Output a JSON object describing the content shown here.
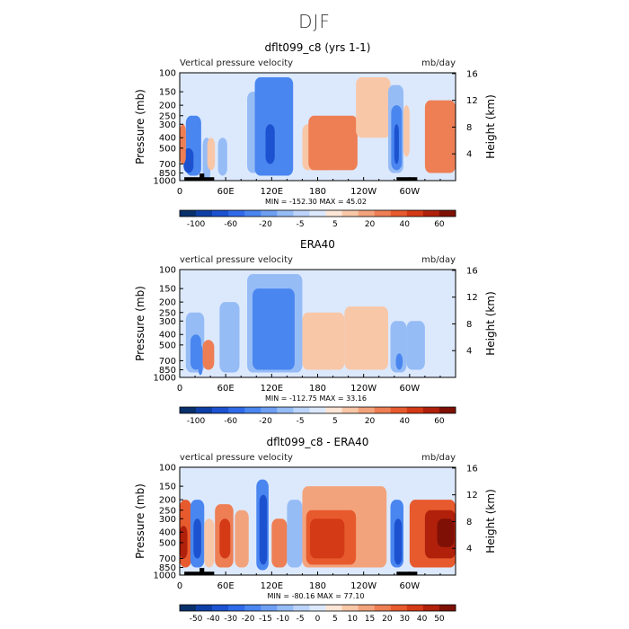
{
  "figure": {
    "title": "DJF"
  },
  "chart_data": [
    {
      "type": "heatmap",
      "title": "dflt099_c8 (yrs 1-1)",
      "left_label": "Vertical pressure velocity",
      "right_label": "mb/day",
      "ylabel": "Pressure (mb)",
      "ylabel_right": "Height (km)",
      "xticks": [
        "0",
        "60E",
        "120E",
        "180",
        "120W",
        "60W"
      ],
      "yticks": [
        "100",
        "150",
        "200",
        "250",
        "300",
        "400",
        "500",
        "700",
        "850",
        "1000"
      ],
      "yticks_right": [
        "16",
        "12",
        "8",
        "4"
      ],
      "stats": {
        "min_label": "MIN =",
        "min": "-152.30",
        "max_label": "MAX =",
        "max": "45.02"
      },
      "colorbar": {
        "ticks": [
          "-100",
          "-60",
          "-20",
          "-5",
          "5",
          "20",
          "40",
          "60"
        ],
        "colors": [
          "#08306b",
          "#0d3fa6",
          "#1c52d0",
          "#2f6ae8",
          "#4a86f0",
          "#6e9ff2",
          "#96bcf6",
          "#bcd4fa",
          "#dce9fd",
          "#fde6d6",
          "#f8c7a8",
          "#f3a37c",
          "#ee7e54",
          "#e75a2e",
          "#d43a16",
          "#b0200b",
          "#7f1005"
        ]
      },
      "data": {
        "xlim": [
          0,
          360
        ],
        "ylim": [
          1000,
          100
        ],
        "features": [
          {
            "x": [
              8,
              28
            ],
            "p": [
              900,
              250
            ],
            "v": -60
          },
          {
            "x": [
              5,
              18
            ],
            "p": [
              850,
              500
            ],
            "v": -100
          },
          {
            "x": [
              30,
              40
            ],
            "p": [
              1000,
              400
            ],
            "v": -20
          },
          {
            "x": [
              0,
              8
            ],
            "p": [
              700,
              300
            ],
            "v": 20
          },
          {
            "x": [
              36,
              46
            ],
            "p": [
              800,
              400
            ],
            "v": 5
          },
          {
            "x": [
              50,
              62
            ],
            "p": [
              900,
              400
            ],
            "v": -20
          },
          {
            "x": [
              72,
              88
            ],
            "p": [
              850,
              200
            ],
            "v": -5
          },
          {
            "x": [
              88,
              108
            ],
            "p": [
              850,
              150
            ],
            "v": -20
          },
          {
            "x": [
              98,
              148
            ],
            "p": [
              900,
              110
            ],
            "v": -40
          },
          {
            "x": [
              108,
              142
            ],
            "p": [
              700,
              200
            ],
            "v": -60
          },
          {
            "x": [
              112,
              124
            ],
            "p": [
              700,
              300
            ],
            "v": -100
          },
          {
            "x": [
              160,
              200
            ],
            "p": [
              800,
              300
            ],
            "v": 5
          },
          {
            "x": [
              168,
              232
            ],
            "p": [
              800,
              250
            ],
            "v": 20
          },
          {
            "x": [
              178,
              225
            ],
            "p": [
              750,
              400
            ],
            "v": 30
          },
          {
            "x": [
              230,
              275
            ],
            "p": [
              400,
              110
            ],
            "v": 5
          },
          {
            "x": [
              272,
              292
            ],
            "p": [
              850,
              130
            ],
            "v": -20
          },
          {
            "x": [
              276,
              290
            ],
            "p": [
              800,
              200
            ],
            "v": -60
          },
          {
            "x": [
              280,
              286
            ],
            "p": [
              700,
              300
            ],
            "v": -100
          },
          {
            "x": [
              292,
              300
            ],
            "p": [
              600,
              200
            ],
            "v": 5
          },
          {
            "x": [
              320,
              360
            ],
            "p": [
              850,
              180
            ],
            "v": 20
          },
          {
            "x": [
              335,
              360
            ],
            "p": [
              600,
              250
            ],
            "v": 30
          }
        ],
        "masks": [
          {
            "x": [
              6,
              45
            ],
            "p": [
              1000,
              930
            ]
          },
          {
            "x": [
              26,
              32
            ],
            "p": [
              1000,
              860
            ]
          },
          {
            "x": [
              283,
              310
            ],
            "p": [
              1000,
              930
            ]
          }
        ]
      }
    },
    {
      "type": "heatmap",
      "title": "ERA40",
      "left_label": "vertical pressure velocity",
      "right_label": "mb/day",
      "ylabel": "Pressure (mb)",
      "ylabel_right": "Height (km)",
      "xticks": [
        "0",
        "60E",
        "120E",
        "180",
        "120W",
        "60W"
      ],
      "yticks": [
        "100",
        "150",
        "200",
        "250",
        "300",
        "400",
        "500",
        "700",
        "850",
        "1000"
      ],
      "yticks_right": [
        "16",
        "12",
        "8",
        "4"
      ],
      "stats": {
        "min_label": "MIN =",
        "min": "-112.75",
        "max_label": "MAX =",
        "max": "33.16"
      },
      "colorbar": {
        "ticks": [
          "-100",
          "-60",
          "-20",
          "-5",
          "5",
          "20",
          "40",
          "60"
        ],
        "colors": [
          "#08306b",
          "#0d3fa6",
          "#1c52d0",
          "#2f6ae8",
          "#4a86f0",
          "#6e9ff2",
          "#96bcf6",
          "#bcd4fa",
          "#dce9fd",
          "#fde6d6",
          "#f8c7a8",
          "#f3a37c",
          "#ee7e54",
          "#e75a2e",
          "#d43a16",
          "#b0200b",
          "#7f1005"
        ]
      },
      "data": {
        "xlim": [
          0,
          360
        ],
        "ylim": [
          1000,
          100
        ],
        "features": [
          {
            "x": [
              2,
              70
            ],
            "p": [
              950,
              150
            ],
            "v": -5
          },
          {
            "x": [
              8,
              32
            ],
            "p": [
              900,
              250
            ],
            "v": -20
          },
          {
            "x": [
              14,
              28
            ],
            "p": [
              850,
              400
            ],
            "v": -40
          },
          {
            "x": [
              24,
              30
            ],
            "p": [
              950,
              500
            ],
            "v": -60
          },
          {
            "x": [
              30,
              45
            ],
            "p": [
              850,
              450
            ],
            "v": 20
          },
          {
            "x": [
              34,
              42
            ],
            "p": [
              800,
              450
            ],
            "v": 30
          },
          {
            "x": [
              52,
              78
            ],
            "p": [
              900,
              200
            ],
            "v": -20
          },
          {
            "x": [
              88,
              160
            ],
            "p": [
              900,
              110
            ],
            "v": -20
          },
          {
            "x": [
              95,
              150
            ],
            "p": [
              850,
              150
            ],
            "v": -40
          },
          {
            "x": [
              110,
              130
            ],
            "p": [
              700,
              250
            ],
            "v": -60
          },
          {
            "x": [
              160,
              215
            ],
            "p": [
              850,
              250
            ],
            "v": 5
          },
          {
            "x": [
              215,
              272
            ],
            "p": [
              850,
              220
            ],
            "v": 5
          },
          {
            "x": [
              275,
              296
            ],
            "p": [
              900,
              300
            ],
            "v": -20
          },
          {
            "x": [
              282,
              291
            ],
            "p": [
              850,
              600
            ],
            "v": -60
          },
          {
            "x": [
              296,
              320
            ],
            "p": [
              850,
              300
            ],
            "v": -20
          },
          {
            "x": [
              324,
              350
            ],
            "p": [
              850,
              400
            ],
            "v": -5
          }
        ],
        "masks": []
      }
    },
    {
      "type": "heatmap",
      "title": "dflt099_c8 - ERA40",
      "left_label": "vertical pressure velocity",
      "right_label": "mb/day",
      "ylabel": "Pressure (mb)",
      "ylabel_right": "Height (km)",
      "xticks": [
        "0",
        "60E",
        "120E",
        "180",
        "120W",
        "60W"
      ],
      "yticks": [
        "100",
        "150",
        "200",
        "250",
        "300",
        "400",
        "500",
        "700",
        "850",
        "1000"
      ],
      "yticks_right": [
        "16",
        "12",
        "8",
        "4"
      ],
      "stats": {
        "min_label": "MIN =",
        "min": "-80.16",
        "max_label": "MAX =",
        "max": "77.10"
      },
      "colorbar": {
        "ticks": [
          "-50",
          "-40",
          "-30",
          "-20",
          "-15",
          "-10",
          "-5",
          "0",
          "5",
          "10",
          "15",
          "20",
          "30",
          "40",
          "50"
        ],
        "colors": [
          "#08306b",
          "#0d3fa6",
          "#1c52d0",
          "#2f6ae8",
          "#4a86f0",
          "#6e9ff2",
          "#96bcf6",
          "#bcd4fa",
          "#dce9fd",
          "#fde6d6",
          "#f8c7a8",
          "#f3a37c",
          "#ee7e54",
          "#e75a2e",
          "#d43a16",
          "#b0200b",
          "#7f1005"
        ]
      },
      "data": {
        "xlim": [
          0,
          360
        ],
        "ylim": [
          1000,
          100
        ],
        "features": [
          {
            "x": [
              0,
              15
            ],
            "p": [
              850,
              200
            ],
            "v": 20
          },
          {
            "x": [
              0,
              10
            ],
            "p": [
              700,
              350
            ],
            "v": 40
          },
          {
            "x": [
              14,
              32
            ],
            "p": [
              850,
              200
            ],
            "v": -20
          },
          {
            "x": [
              18,
              28
            ],
            "p": [
              700,
              300
            ],
            "v": -40
          },
          {
            "x": [
              32,
              45
            ],
            "p": [
              850,
              300
            ],
            "v": 5
          },
          {
            "x": [
              46,
              70
            ],
            "p": [
              850,
              220
            ],
            "v": 15
          },
          {
            "x": [
              52,
              66
            ],
            "p": [
              700,
              300
            ],
            "v": 30
          },
          {
            "x": [
              72,
              90
            ],
            "p": [
              850,
              250
            ],
            "v": 10
          },
          {
            "x": [
              100,
              116
            ],
            "p": [
              900,
              130
            ],
            "v": -20
          },
          {
            "x": [
              104,
              114
            ],
            "p": [
              800,
              180
            ],
            "v": -40
          },
          {
            "x": [
              120,
              140
            ],
            "p": [
              850,
              300
            ],
            "v": 15
          },
          {
            "x": [
              140,
              160
            ],
            "p": [
              850,
              200
            ],
            "v": -10
          },
          {
            "x": [
              160,
              270
            ],
            "p": [
              850,
              150
            ],
            "v": 10
          },
          {
            "x": [
              165,
              230
            ],
            "p": [
              800,
              250
            ],
            "v": 20
          },
          {
            "x": [
              170,
              215
            ],
            "p": [
              700,
              300
            ],
            "v": 30
          },
          {
            "x": [
              275,
              292
            ],
            "p": [
              850,
              200
            ],
            "v": -20
          },
          {
            "x": [
              280,
              290
            ],
            "p": [
              800,
              300
            ],
            "v": -40
          },
          {
            "x": [
              300,
              360
            ],
            "p": [
              850,
              200
            ],
            "v": 20
          },
          {
            "x": [
              320,
              360
            ],
            "p": [
              700,
              250
            ],
            "v": 40
          },
          {
            "x": [
              336,
              358
            ],
            "p": [
              550,
              300
            ],
            "v": 50
          }
        ],
        "masks": [
          {
            "x": [
              6,
              45
            ],
            "p": [
              1000,
              930
            ]
          },
          {
            "x": [
              26,
              32
            ],
            "p": [
              1000,
              860
            ]
          },
          {
            "x": [
              283,
              310
            ],
            "p": [
              1000,
              930
            ]
          }
        ]
      }
    }
  ]
}
